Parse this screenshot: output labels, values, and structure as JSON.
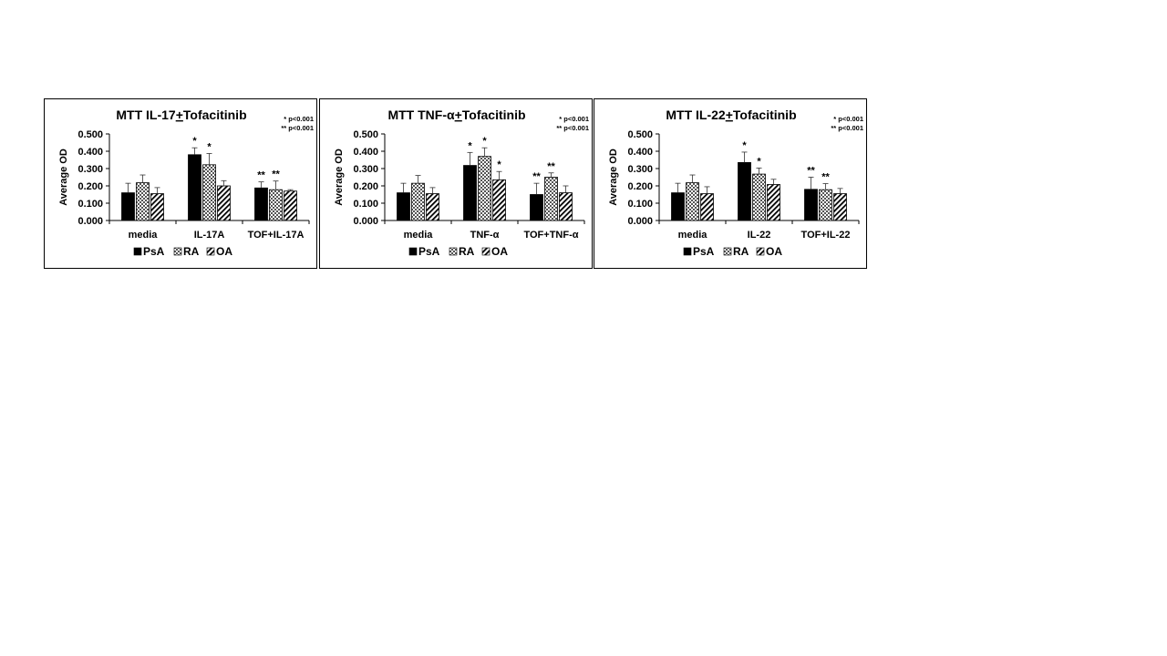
{
  "chart_data": [
    {
      "type": "bar",
      "title_parts": [
        "MTT IL-17",
        "+",
        "Tofacitinib"
      ],
      "ylabel": "Average OD",
      "ylim": [
        0,
        0.5
      ],
      "yticks": [
        "0.000",
        "0.100",
        "0.200",
        "0.300",
        "0.400",
        "0.500"
      ],
      "categories": [
        "media",
        "IL-17A",
        "TOF+IL-17A"
      ],
      "legend": [
        "PsA",
        "RA",
        "OA"
      ],
      "significance_note": [
        "* p<0.001",
        "** p<0.001"
      ],
      "series": [
        {
          "name": "PsA",
          "values": [
            0.16,
            0.38,
            0.188
          ],
          "errors": [
            0.055,
            0.04,
            0.035
          ],
          "markers": [
            "",
            "*",
            "**"
          ]
        },
        {
          "name": "RA",
          "values": [
            0.218,
            0.322,
            0.178
          ],
          "errors": [
            0.045,
            0.065,
            0.05
          ],
          "markers": [
            "",
            "*",
            "**"
          ]
        },
        {
          "name": "OA",
          "values": [
            0.155,
            0.2,
            0.17
          ],
          "errors": [
            0.035,
            0.03,
            0.008
          ],
          "markers": [
            "",
            "",
            ""
          ]
        }
      ]
    },
    {
      "type": "bar",
      "title_parts": [
        "MTT TNF-α",
        "+",
        "Tofacitinib"
      ],
      "ylabel": "Average OD",
      "ylim": [
        0,
        0.5
      ],
      "yticks": [
        "0.000",
        "0.100",
        "0.200",
        "0.300",
        "0.400",
        "0.500"
      ],
      "categories": [
        "media",
        "TNF-α",
        "TOF+TNF-α"
      ],
      "legend": [
        "PsA",
        "RA",
        "OA"
      ],
      "significance_note": [
        "* p<0.001",
        "** p<0.001"
      ],
      "series": [
        {
          "name": "PsA",
          "values": [
            0.16,
            0.318,
            0.15
          ],
          "errors": [
            0.055,
            0.075,
            0.065
          ],
          "markers": [
            "",
            "*",
            "**"
          ]
        },
        {
          "name": "RA",
          "values": [
            0.215,
            0.37,
            0.25
          ],
          "errors": [
            0.045,
            0.05,
            0.025
          ],
          "markers": [
            "",
            "*",
            "**"
          ]
        },
        {
          "name": "OA",
          "values": [
            0.155,
            0.235,
            0.16
          ],
          "errors": [
            0.035,
            0.048,
            0.04
          ],
          "markers": [
            "",
            "*",
            ""
          ]
        }
      ]
    },
    {
      "type": "bar",
      "title_parts": [
        "MTT IL-22",
        "+",
        "Tofacitinib"
      ],
      "ylabel": "Average OD",
      "ylim": [
        0,
        0.5
      ],
      "yticks": [
        "0.000",
        "0.100",
        "0.200",
        "0.300",
        "0.400",
        "0.500"
      ],
      "categories": [
        "media",
        "IL-22",
        "TOF+IL-22"
      ],
      "legend": [
        "PsA",
        "RA",
        "OA"
      ],
      "significance_note": [
        "* p<0.001",
        "** p<0.001"
      ],
      "series": [
        {
          "name": "PsA",
          "values": [
            0.16,
            0.335,
            0.18
          ],
          "errors": [
            0.055,
            0.06,
            0.07
          ],
          "markers": [
            "",
            "*",
            "**"
          ]
        },
        {
          "name": "RA",
          "values": [
            0.218,
            0.268,
            0.178
          ],
          "errors": [
            0.045,
            0.035,
            0.035
          ],
          "markers": [
            "",
            "*",
            "**"
          ]
        },
        {
          "name": "OA",
          "values": [
            0.155,
            0.208,
            0.155
          ],
          "errors": [
            0.04,
            0.03,
            0.03
          ],
          "markers": [
            "",
            "",
            ""
          ]
        }
      ]
    }
  ]
}
